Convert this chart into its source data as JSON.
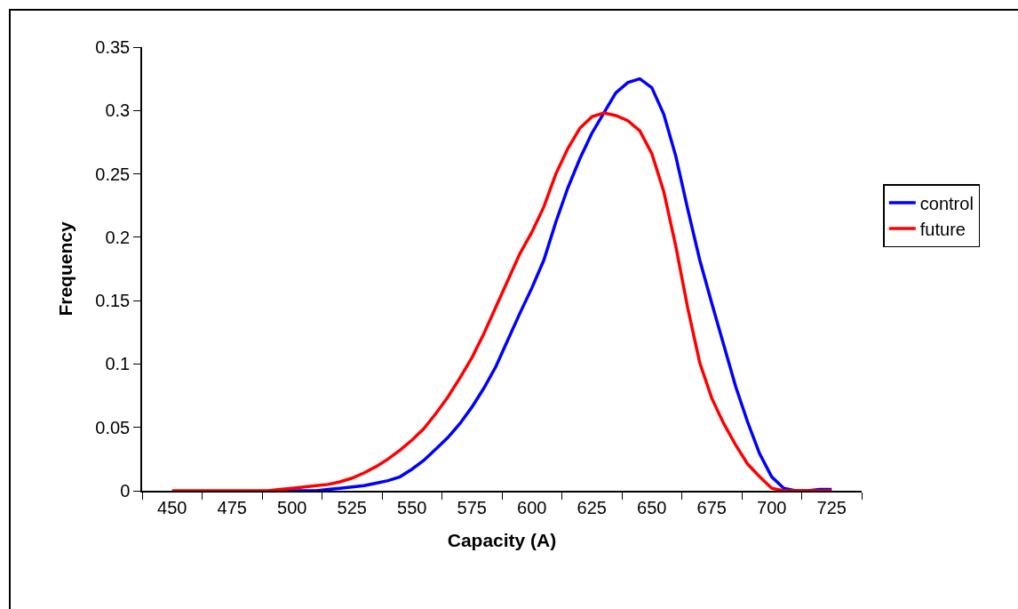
{
  "chart_data": {
    "type": "line",
    "xlabel": "Capacity (A)",
    "ylabel": "Frequency",
    "x": [
      450,
      455,
      460,
      465,
      470,
      475,
      480,
      485,
      490,
      495,
      500,
      505,
      510,
      515,
      520,
      525,
      530,
      535,
      540,
      545,
      550,
      555,
      560,
      565,
      570,
      575,
      580,
      585,
      590,
      595,
      600,
      605,
      610,
      615,
      620,
      625,
      630,
      635,
      640,
      645,
      650,
      655,
      660,
      665,
      670,
      675,
      680,
      685,
      690,
      695,
      700,
      705,
      710,
      715,
      720,
      725
    ],
    "series": [
      {
        "name": "control",
        "color": "#0000ff",
        "values": [
          null,
          null,
          null,
          null,
          null,
          null,
          null,
          null,
          null,
          0,
          0,
          0,
          0,
          0.001,
          0.002,
          0.003,
          0.004,
          0.006,
          0.008,
          0.011,
          0.017,
          0.024,
          0.033,
          0.042,
          0.053,
          0.066,
          0.081,
          0.098,
          0.119,
          0.14,
          0.16,
          0.182,
          0.212,
          0.239,
          0.262,
          0.282,
          0.298,
          0.314,
          0.322,
          0.325,
          0.318,
          0.297,
          0.264,
          0.222,
          0.182,
          0.148,
          0.115,
          0.082,
          0.054,
          0.029,
          0.011,
          0.002,
          0,
          0,
          0.001,
          0.001
        ]
      },
      {
        "name": "future",
        "color": "#ff0000",
        "values": [
          0,
          0,
          0,
          0,
          0,
          0,
          0,
          0,
          0,
          0.001,
          0.002,
          0.003,
          0.004,
          0.005,
          0.007,
          0.01,
          0.014,
          0.019,
          0.025,
          0.032,
          0.04,
          0.049,
          0.061,
          0.074,
          0.089,
          0.105,
          0.124,
          0.145,
          0.166,
          0.187,
          0.204,
          0.224,
          0.25,
          0.27,
          0.286,
          0.295,
          0.298,
          0.296,
          0.292,
          0.284,
          0.266,
          0.236,
          0.193,
          0.144,
          0.101,
          0.073,
          0.053,
          0.036,
          0.021,
          0.011,
          0.002,
          0,
          0,
          0,
          0,
          0
        ]
      }
    ],
    "xlim": [
      437.5,
      737.5
    ],
    "xticks": [
      {
        "value": 437.5,
        "label": null
      },
      450,
      {
        "value": 462.5,
        "label": null
      },
      475,
      {
        "value": 487.5,
        "label": null
      },
      500,
      {
        "value": 512.5,
        "label": null
      },
      525,
      {
        "value": 537.5,
        "label": null
      },
      550,
      {
        "value": 562.5,
        "label": null
      },
      575,
      {
        "value": 587.5,
        "label": null
      },
      600,
      {
        "value": 612.5,
        "label": null
      },
      625,
      {
        "value": 637.5,
        "label": null
      },
      650,
      {
        "value": 662.5,
        "label": null
      },
      675,
      {
        "value": 687.5,
        "label": null
      },
      700,
      {
        "value": 712.5,
        "label": null
      },
      725,
      {
        "value": 737.5,
        "label": null
      }
    ],
    "ylim": [
      0,
      0.35
    ],
    "yticks": [
      0,
      0.05,
      0.1,
      0.15,
      0.2,
      0.25,
      0.3,
      0.35
    ],
    "grid": false,
    "legend": "right",
    "marker": "none",
    "line_style": "solid"
  }
}
